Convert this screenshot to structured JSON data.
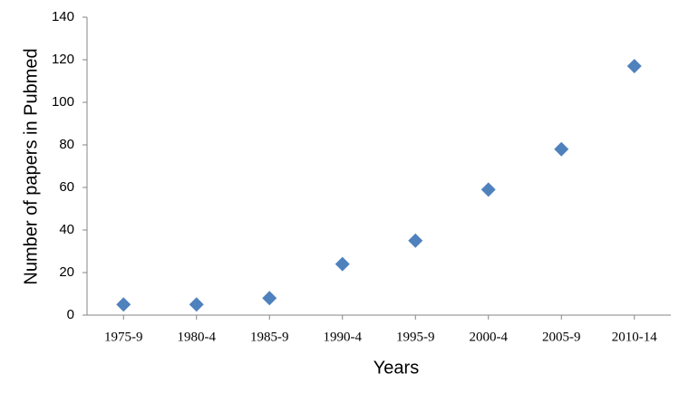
{
  "chart_data": {
    "type": "scatter",
    "x_label": "Years",
    "y_label": "Number of papers in Pubmed",
    "categories": [
      "1975-9",
      "1980-4",
      "1985-9",
      "1990-4",
      "1995-9",
      "2000-4",
      "2005-9",
      "2010-14"
    ],
    "values": [
      5,
      5,
      8,
      24,
      35,
      59,
      78,
      117
    ],
    "color": "#4f81bd",
    "marker": "diamond",
    "ylim": [
      0,
      140
    ],
    "yticks": [
      0,
      20,
      40,
      60,
      80,
      100,
      120,
      140
    ],
    "grid": false
  }
}
